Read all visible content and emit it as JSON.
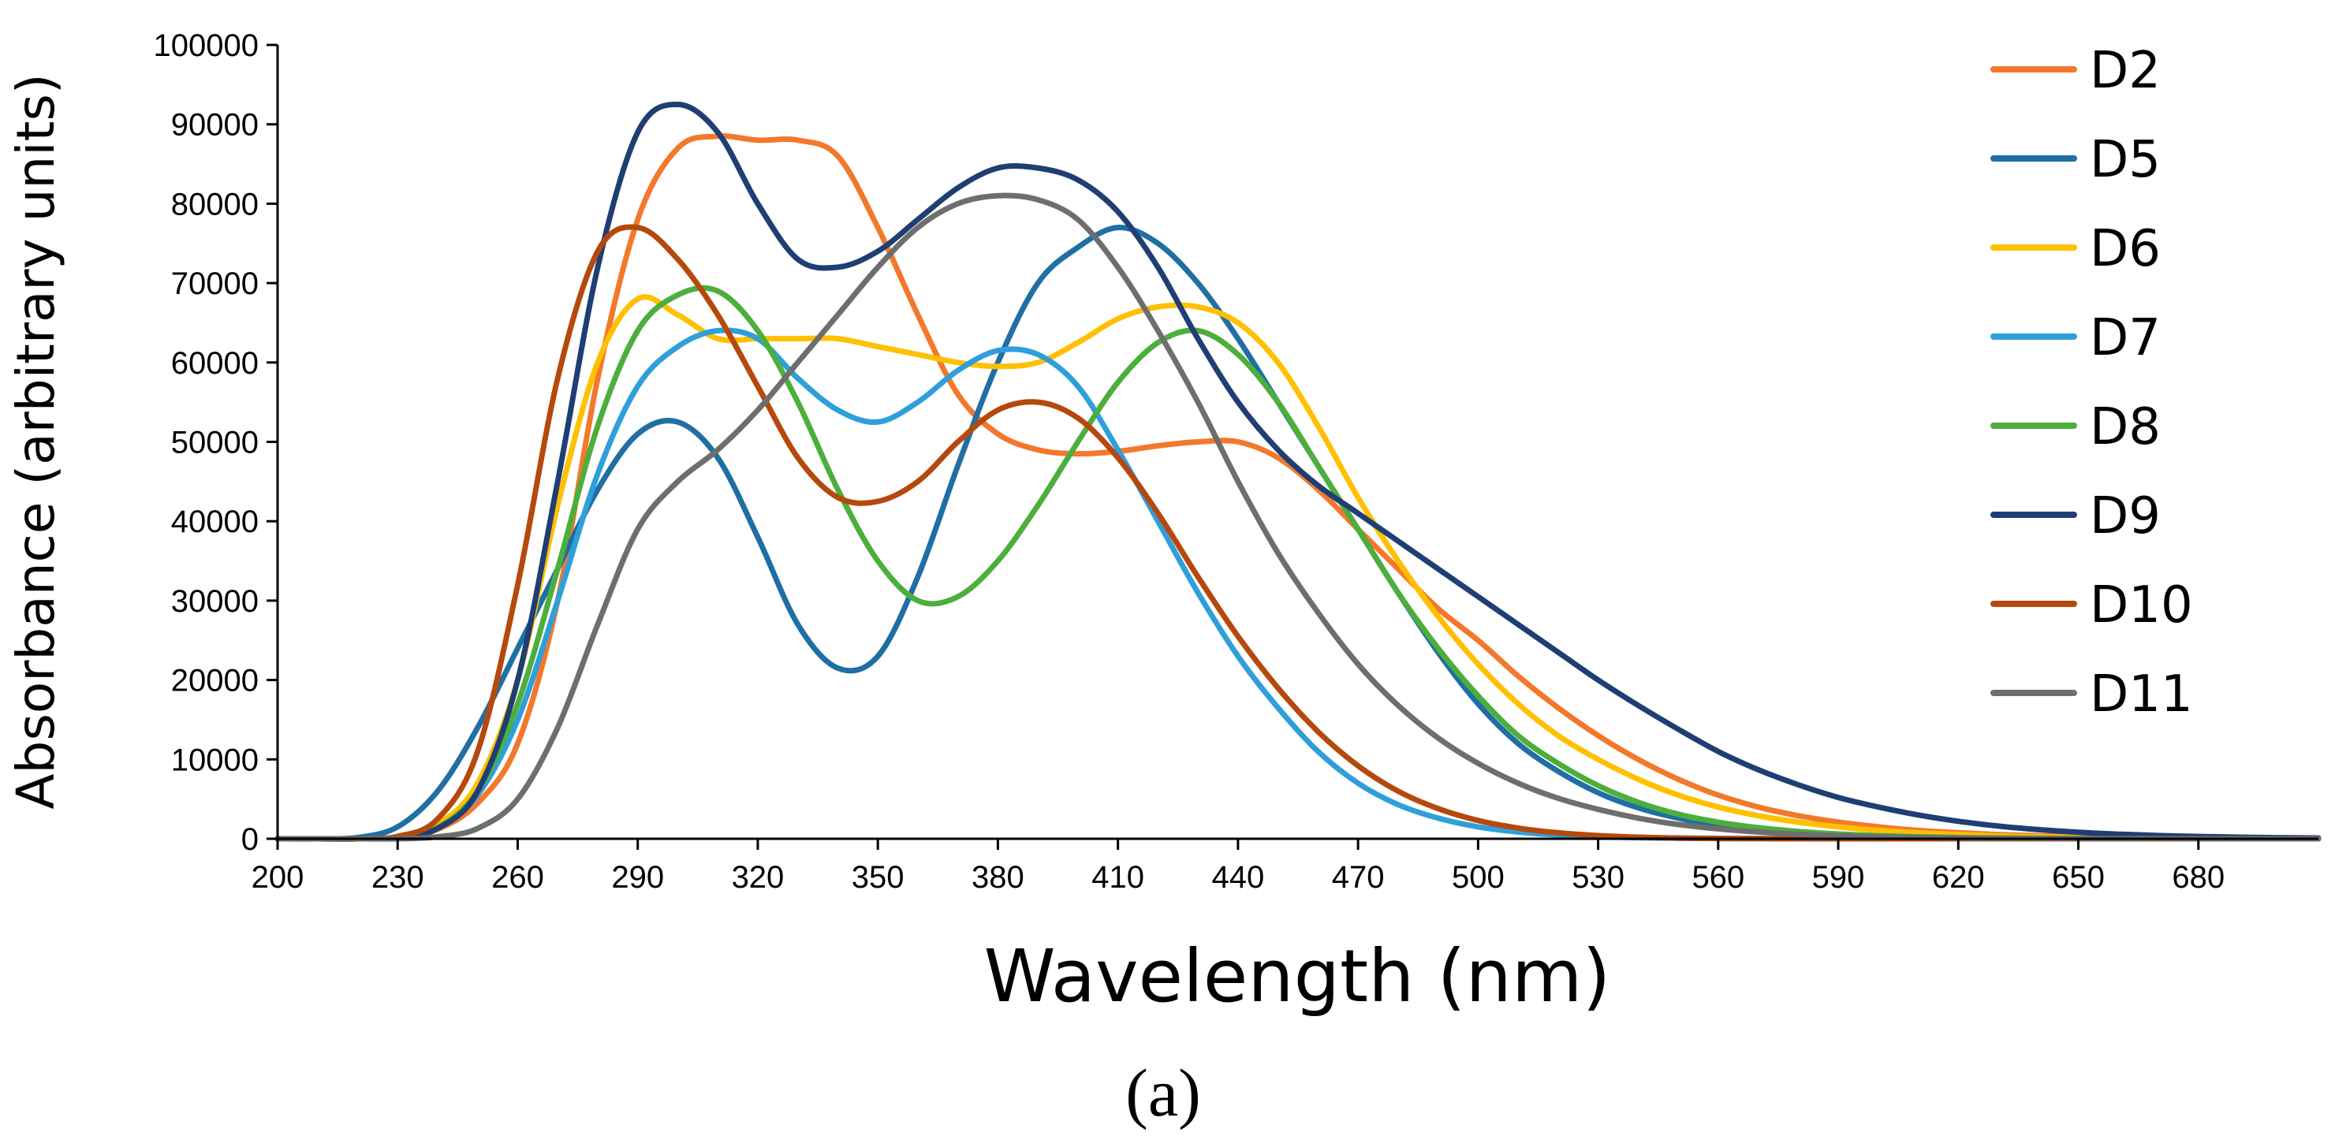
{
  "chart_data": {
    "type": "line",
    "title": "",
    "xlabel": "Wavelength (nm)",
    "ylabel": "Absorbance (arbitrary  units)",
    "panel_label": "(a)",
    "xlim": [
      200,
      710
    ],
    "ylim": [
      0,
      100000
    ],
    "grid": false,
    "legend_position": "right",
    "x_ticks": [
      "200",
      "230",
      "260",
      "290",
      "320",
      "350",
      "380",
      "410",
      "440",
      "470",
      "500",
      "530",
      "560",
      "590",
      "620",
      "650",
      "680"
    ],
    "y_ticks": [
      "0",
      "10000",
      "20000",
      "30000",
      "40000",
      "50000",
      "60000",
      "70000",
      "80000",
      "90000",
      "100000"
    ],
    "x": [
      200,
      210,
      220,
      230,
      240,
      250,
      260,
      270,
      280,
      290,
      300,
      310,
      320,
      330,
      340,
      350,
      360,
      370,
      380,
      390,
      400,
      410,
      420,
      430,
      440,
      450,
      460,
      470,
      480,
      490,
      500,
      510,
      520,
      530,
      540,
      550,
      560,
      570,
      580,
      590,
      600,
      610,
      620,
      630,
      640,
      650,
      660,
      670,
      680,
      690,
      700,
      710
    ],
    "series": [
      {
        "name": "D2",
        "color": "#F4782B",
        "values": [
          0,
          0,
          0,
          200,
          1200,
          4500,
          12000,
          30000,
          58000,
          78000,
          87000,
          88500,
          88000,
          88000,
          86000,
          77000,
          66000,
          56000,
          51000,
          49000,
          48500,
          48800,
          49500,
          50000,
          50000,
          48000,
          44000,
          39000,
          34000,
          29000,
          25000,
          20500,
          16500,
          13000,
          10000,
          7500,
          5500,
          4000,
          2900,
          2100,
          1500,
          1050,
          750,
          530,
          380,
          270,
          190,
          130,
          90,
          60,
          40,
          30
        ]
      },
      {
        "name": "D5",
        "color": "#1F6FA4",
        "values": [
          0,
          0,
          150,
          1500,
          6000,
          14000,
          24000,
          34000,
          44000,
          51000,
          52500,
          48000,
          38000,
          27000,
          21500,
          23000,
          33000,
          47000,
          60000,
          70000,
          74500,
          77000,
          75000,
          70000,
          63000,
          55000,
          47000,
          39000,
          31000,
          23500,
          17000,
          12000,
          8500,
          5800,
          3900,
          2600,
          1700,
          1100,
          700,
          450,
          280,
          170,
          100,
          60,
          35,
          20,
          10,
          5,
          0,
          0,
          0,
          0
        ]
      },
      {
        "name": "D6",
        "color": "#FFC000",
        "values": [
          0,
          0,
          0,
          200,
          1800,
          7000,
          20000,
          42000,
          60000,
          68000,
          66000,
          63000,
          63000,
          63000,
          63000,
          62000,
          61000,
          60000,
          59500,
          60000,
          62500,
          65500,
          67000,
          67000,
          65000,
          60000,
          52000,
          43000,
          35000,
          28000,
          22000,
          17000,
          13000,
          10000,
          7500,
          5500,
          4000,
          2900,
          2100,
          1500,
          1050,
          750,
          520,
          360,
          250,
          170,
          120,
          80,
          50,
          30,
          20,
          15
        ]
      },
      {
        "name": "D7",
        "color": "#2F9FDB",
        "values": [
          0,
          0,
          0,
          150,
          1300,
          5500,
          15000,
          30000,
          46000,
          57000,
          62000,
          64000,
          63000,
          58000,
          54000,
          52500,
          55000,
          59000,
          61500,
          61000,
          57000,
          49000,
          40000,
          31000,
          23000,
          16500,
          11000,
          7000,
          4300,
          2600,
          1500,
          850,
          480,
          260,
          140,
          70,
          35,
          15,
          5,
          0,
          0,
          0,
          0,
          0,
          0,
          0,
          0,
          0,
          0,
          0,
          0,
          0
        ]
      },
      {
        "name": "D8",
        "color": "#4CAF3C",
        "values": [
          0,
          0,
          0,
          150,
          1400,
          6000,
          17000,
          34000,
          52000,
          64000,
          68500,
          69000,
          64000,
          55000,
          44000,
          35000,
          30000,
          30500,
          35000,
          42000,
          50000,
          57500,
          62500,
          64000,
          61000,
          55000,
          47000,
          39000,
          31000,
          24000,
          18000,
          13000,
          9500,
          6700,
          4600,
          3100,
          2100,
          1400,
          920,
          600,
          390,
          250,
          160,
          100,
          60,
          40,
          25,
          15,
          10,
          5,
          0,
          0
        ]
      },
      {
        "name": "D9",
        "color": "#1F3E73",
        "values": [
          0,
          0,
          0,
          150,
          1300,
          6000,
          20000,
          45000,
          72000,
          89000,
          92500,
          89000,
          80000,
          73000,
          72000,
          74000,
          78000,
          82000,
          84500,
          84500,
          83000,
          79000,
          72000,
          63000,
          55000,
          49000,
          44500,
          41000,
          37500,
          34000,
          30500,
          27000,
          23500,
          20000,
          16800,
          13800,
          11000,
          8700,
          6800,
          5200,
          4000,
          3000,
          2200,
          1600,
          1150,
          820,
          580,
          410,
          290,
          200,
          140,
          100
        ]
      },
      {
        "name": "D10",
        "color": "#B5490D",
        "values": [
          0,
          0,
          0,
          300,
          2500,
          11000,
          32000,
          58000,
          74000,
          77000,
          73000,
          66000,
          57000,
          48000,
          43000,
          42500,
          45000,
          50000,
          54000,
          55000,
          53000,
          48000,
          41000,
          33000,
          25500,
          19000,
          13500,
          9200,
          6000,
          3800,
          2300,
          1350,
          750,
          400,
          200,
          90,
          40,
          15,
          5,
          0,
          0,
          0,
          0,
          0,
          0,
          0,
          0,
          0,
          0,
          0,
          0,
          0
        ]
      },
      {
        "name": "D11",
        "color": "#6E6E6E",
        "values": [
          0,
          0,
          0,
          0,
          250,
          1300,
          5000,
          14000,
          27000,
          39000,
          45000,
          49000,
          54000,
          60000,
          66000,
          72000,
          77000,
          80000,
          81000,
          80500,
          78000,
          72000,
          64000,
          55000,
          45000,
          36000,
          28500,
          22000,
          16800,
          12700,
          9500,
          7000,
          5100,
          3700,
          2600,
          1800,
          1250,
          850,
          570,
          380,
          250,
          160,
          100,
          60,
          35,
          20,
          10,
          5,
          0,
          0,
          0,
          0
        ]
      }
    ]
  }
}
